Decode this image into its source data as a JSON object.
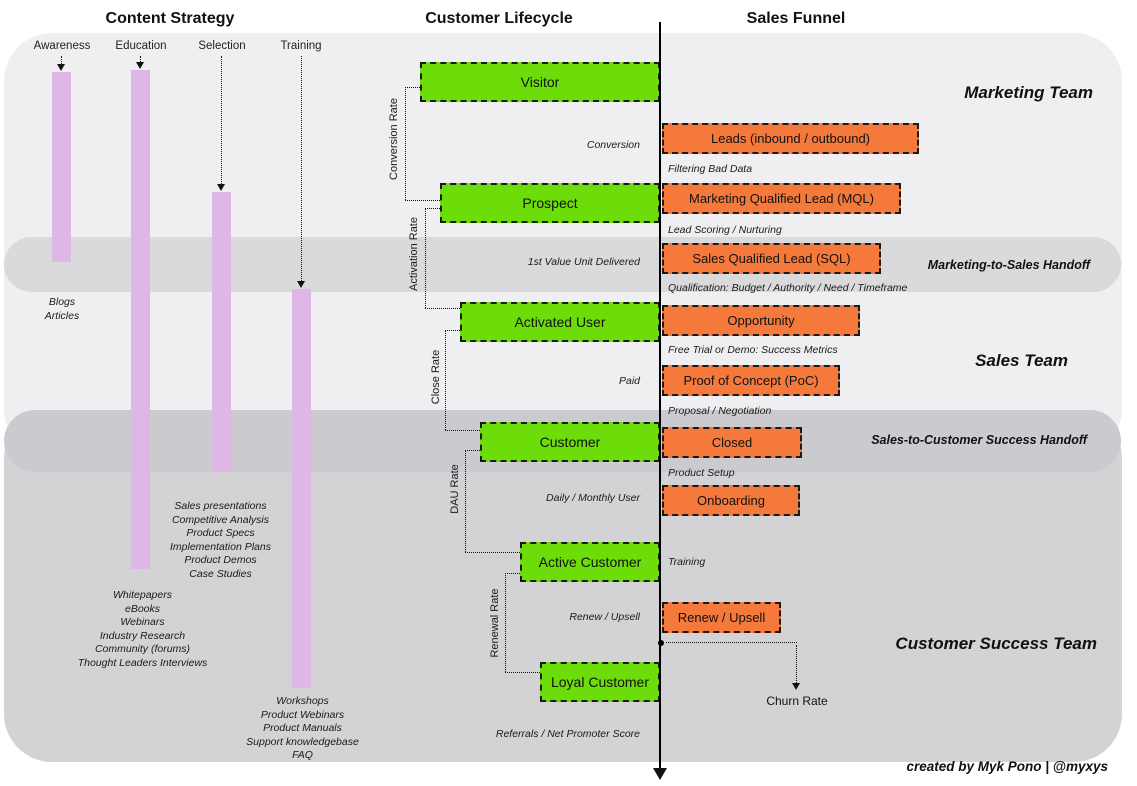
{
  "headers": {
    "content_strategy": "Content Strategy",
    "customer_lifecycle": "Customer Lifecycle",
    "sales_funnel": "Sales Funnel"
  },
  "content_strategy": {
    "columns": [
      {
        "label": "Awareness",
        "items": [
          "Blogs",
          "Articles"
        ]
      },
      {
        "label": "Education",
        "items": [
          "Whitepapers",
          "eBooks",
          "Webinars",
          "Industry Research",
          "Community (forums)",
          "Thought Leaders Interviews"
        ]
      },
      {
        "label": "Selection",
        "items": [
          "Sales presentations",
          "Competitive Analysis",
          "Product Specs",
          "Implementation Plans",
          "Product Demos",
          "Case Studies"
        ]
      },
      {
        "label": "Training",
        "items": [
          "Workshops",
          "Product Webinars",
          "Product Manuals",
          "Support knowledgebase",
          "FAQ"
        ]
      }
    ]
  },
  "lifecycle": {
    "stages": [
      "Visitor",
      "Prospect",
      "Activated User",
      "Customer",
      "Active Customer",
      "Loyal Customer"
    ],
    "rates": [
      "Conversion Rate",
      "Activation Rate",
      "Close Rate",
      "DAU Rate",
      "Renewal Rate"
    ],
    "annotations": [
      "Conversion",
      "1st Value Unit Delivered",
      "Paid",
      "Daily / Monthly User",
      "Renew / Upsell",
      "Referrals / Net Promoter Score"
    ]
  },
  "funnel": {
    "stages": [
      "Leads (inbound / outbound)",
      "Marketing Qualified Lead (MQL)",
      "Sales Qualified Lead (SQL)",
      "Opportunity",
      "Proof of Concept (PoC)",
      "Closed",
      "Onboarding",
      "Renew / Upsell"
    ],
    "annotations": [
      "Filtering Bad Data",
      "Lead Scoring / Nurturing",
      "Qualification: Budget / Authority / Need / Timeframe",
      "Free Trial or Demo: Success Metrics",
      "Proposal / Negotiation",
      "Product Setup",
      "Training"
    ],
    "churn_label": "Churn Rate"
  },
  "teams": {
    "marketing": "Marketing Team",
    "marketing_to_sales_handoff": "Marketing-to-Sales Handoff",
    "sales": "Sales Team",
    "sales_to_customer_handoff": "Sales-to-Customer Success Handoff",
    "customer_success": "Customer Success Team"
  },
  "credit": "created by Myk Pono | @myxys",
  "colors": {
    "stage_green": "#6cdd08",
    "funnel_orange": "#f5793b",
    "content_purple": "#deb7e7",
    "band_light": "#efeff1",
    "band_dark": "#d3d3d6",
    "handoff_pill_light": "#dadadd",
    "handoff_pill_dark": "#cbcbcf"
  }
}
